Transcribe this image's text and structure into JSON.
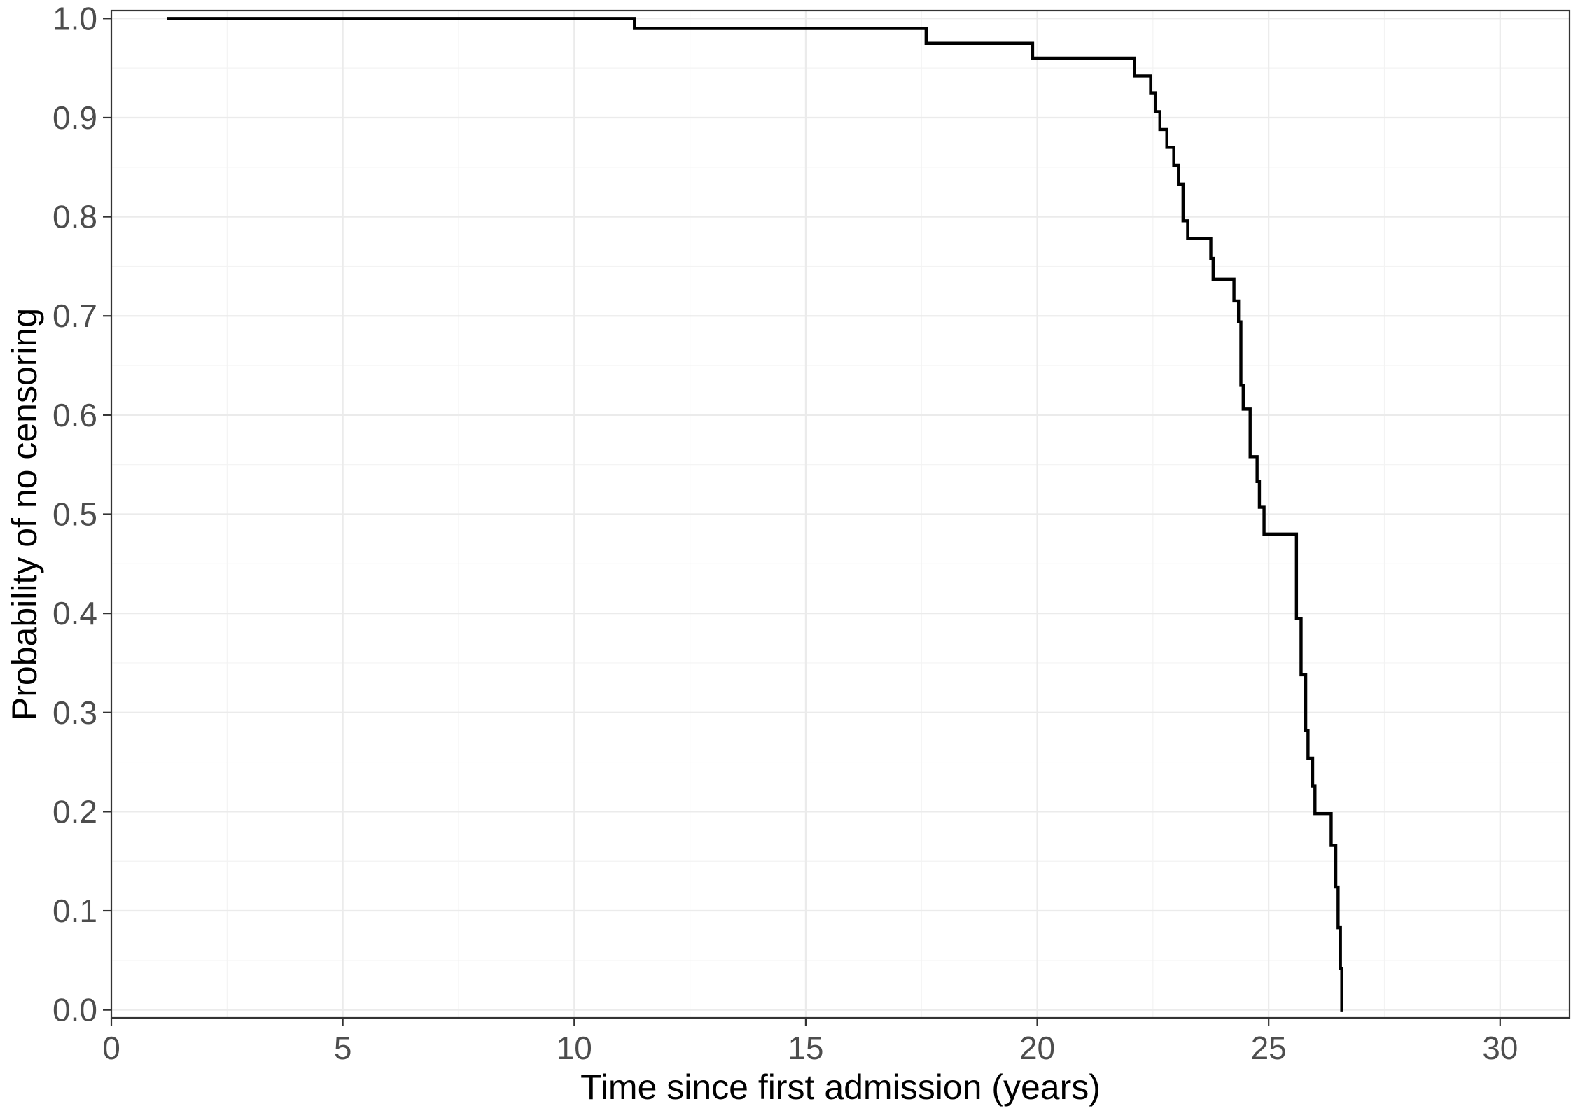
{
  "chart_data": {
    "type": "line",
    "title": "",
    "xlabel": "Time since first admission (years)",
    "ylabel": "Probability of no censoring",
    "xlim": [
      0,
      31.5
    ],
    "ylim": [
      0,
      1.0
    ],
    "x_ticks": [
      0,
      5,
      10,
      15,
      20,
      25,
      30
    ],
    "x_tick_labels": [
      "0",
      "5",
      "10",
      "15",
      "20",
      "25",
      "30"
    ],
    "y_ticks": [
      0.0,
      0.1,
      0.2,
      0.3,
      0.4,
      0.5,
      0.6,
      0.7,
      0.8,
      0.9,
      1.0
    ],
    "y_tick_labels": [
      "0.0",
      "0.1",
      "0.2",
      "0.3",
      "0.4",
      "0.5",
      "0.6",
      "0.7",
      "0.8",
      "0.9",
      "1.0"
    ],
    "grid": true,
    "legend": "none",
    "line_style": "step",
    "line_color": "#000000",
    "series": [
      {
        "x": [
          1.2,
          11.3,
          17.6,
          19.9,
          22.1,
          22.45,
          22.55,
          22.65,
          22.8,
          22.95,
          23.05,
          23.15,
          23.25,
          23.75,
          23.8,
          24.25,
          24.35,
          24.4,
          24.45,
          24.6,
          24.75,
          24.8,
          24.9,
          25.6,
          25.7,
          25.8,
          25.85,
          25.95,
          26.0,
          26.35,
          26.45,
          26.5,
          26.55,
          26.58,
          26.6
        ],
        "y": [
          1.0,
          0.99,
          0.975,
          0.96,
          0.942,
          0.925,
          0.906,
          0.888,
          0.87,
          0.852,
          0.833,
          0.796,
          0.778,
          0.758,
          0.737,
          0.715,
          0.694,
          0.63,
          0.606,
          0.558,
          0.533,
          0.507,
          0.48,
          0.395,
          0.338,
          0.282,
          0.254,
          0.226,
          0.198,
          0.166,
          0.124,
          0.083,
          0.042,
          0.0,
          0.0
        ]
      }
    ]
  }
}
